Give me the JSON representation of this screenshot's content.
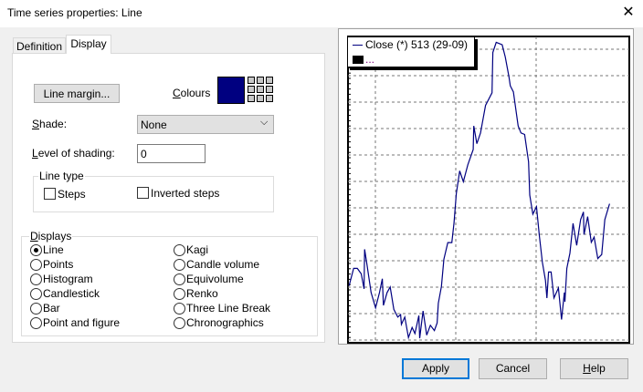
{
  "window": {
    "title": "Time series properties: Line",
    "close_icon": "close-icon"
  },
  "tabs": [
    {
      "label": "Definition",
      "active": false
    },
    {
      "label": "Display",
      "active": true
    }
  ],
  "display": {
    "line_margin_label": "Line margin...",
    "colours_label": "Colours",
    "selected_colour": "#000080",
    "shade_label": "Shade:",
    "shade_value": "None",
    "level_label": "Level of shading:",
    "level_value": "0",
    "line_type": {
      "label": "Line type",
      "steps": {
        "label": "Steps",
        "checked": false
      },
      "inverted": {
        "label": "Inverted steps",
        "checked": false
      }
    },
    "displays": {
      "label": "Displays",
      "options": [
        "Line",
        "Points",
        "Histogram",
        "Candlestick",
        "Bar",
        "Point and figure",
        "Kagi",
        "Candle volume",
        "Equivolume",
        "Renko",
        "Three Line Break",
        "Chronographics"
      ],
      "selected": "Line"
    }
  },
  "preview": {
    "legend": {
      "series_label": "Close (*) 513 (29-09)",
      "second_label": "...",
      "line_color": "#000080"
    },
    "chart_data": {
      "type": "line",
      "grid": true,
      "series": [
        {
          "color": "#000080",
          "points": [
            [
              0.4,
              18.6
            ],
            [
              2,
              24.3
            ],
            [
              3.3,
              24.3
            ],
            [
              4.7,
              22.5
            ],
            [
              5.7,
              17.6
            ],
            [
              5.9,
              30.5
            ],
            [
              6.8,
              25.3
            ],
            [
              8.2,
              16.4
            ],
            [
              9.8,
              11.4
            ],
            [
              11.2,
              16.4
            ],
            [
              12.2,
              20.9
            ],
            [
              12.6,
              12.2
            ],
            [
              13.9,
              16.4
            ],
            [
              15,
              18.2
            ],
            [
              16.3,
              10.9
            ],
            [
              17.7,
              8.4
            ],
            [
              18.7,
              9.2
            ],
            [
              19,
              6
            ],
            [
              20.2,
              8.4
            ],
            [
              21.5,
              1.7
            ],
            [
              22.8,
              5
            ],
            [
              23.8,
              3
            ],
            [
              25.2,
              8.9
            ],
            [
              25.5,
              1.5
            ],
            [
              26.7,
              10.4
            ],
            [
              28,
              2.5
            ],
            [
              29.3,
              5.7
            ],
            [
              30.7,
              4
            ],
            [
              31.7,
              6.5
            ],
            [
              32.1,
              12.9
            ],
            [
              33.2,
              18.4
            ],
            [
              34.1,
              27.3
            ],
            [
              35.5,
              32.7
            ],
            [
              36.9,
              32.7
            ],
            [
              37.7,
              39.2
            ],
            [
              38.5,
              48.7
            ],
            [
              39.7,
              56.1
            ],
            [
              41,
              52.6
            ],
            [
              42.6,
              58.1
            ],
            [
              44.5,
              63.1
            ],
            [
              44.7,
              70.8
            ],
            [
              45.8,
              65
            ],
            [
              47.1,
              68.5
            ],
            [
              48.9,
              77.5
            ],
            [
              51.2,
              81.6
            ],
            [
              51.5,
              94.8
            ],
            [
              52.7,
              98.1
            ],
            [
              54.8,
              97.3
            ],
            [
              55.9,
              93.3
            ],
            [
              57.2,
              86.9
            ],
            [
              57.7,
              83.9
            ],
            [
              58.8,
              81.9
            ],
            [
              60.5,
              70.8
            ],
            [
              61.5,
              68.5
            ],
            [
              62.8,
              68
            ],
            [
              64.2,
              59.1
            ],
            [
              64.6,
              48.2
            ],
            [
              65.7,
              42
            ],
            [
              67,
              44.4
            ],
            [
              68,
              35.3
            ],
            [
              69.1,
              26.3
            ],
            [
              70.2,
              20.4
            ],
            [
              70.7,
              14.6
            ],
            [
              71.3,
              23.1
            ],
            [
              72.2,
              23.1
            ],
            [
              73.2,
              14.6
            ],
            [
              74.8,
              17.9
            ],
            [
              75.9,
              7.6
            ],
            [
              76.9,
              16.4
            ],
            [
              77.1,
              13.4
            ],
            [
              77.8,
              24.3
            ],
            [
              78.9,
              29.3
            ],
            [
              80,
              39
            ],
            [
              81.3,
              31.8
            ],
            [
              82.7,
              40.2
            ],
            [
              83.7,
              42.7
            ],
            [
              83.9,
              35.3
            ],
            [
              85.2,
              41.2
            ],
            [
              86.5,
              32.8
            ],
            [
              87.5,
              34.5
            ],
            [
              88.8,
              27.5
            ],
            [
              90.2,
              28.8
            ],
            [
              91.3,
              40.2
            ],
            [
              93,
              45.4
            ]
          ]
        }
      ]
    }
  },
  "buttons": {
    "apply": "Apply",
    "cancel": "Cancel",
    "help": "Help"
  }
}
